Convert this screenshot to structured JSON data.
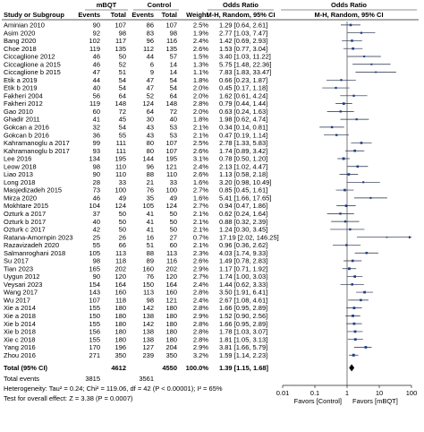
{
  "chart_data": {
    "type": "forest",
    "headers": {
      "group_exp": "mBQT",
      "group_ctrl": "Control",
      "or_group": "Odds Ratio",
      "or_plot_group": "Odds Ratio",
      "study": "Study or Subgroup",
      "events_exp": "Events",
      "total_exp": "Total",
      "events_ctrl": "Events",
      "total_ctrl": "Total",
      "weight": "Weight",
      "method": "M-H, Random, 95% CI",
      "method_plot": "M-H, Random, 95% CI"
    },
    "studies": [
      {
        "name": "Aminian 2010",
        "e1": "90",
        "n1": "107",
        "e2": "86",
        "n2": "107",
        "w": "2.5%",
        "or": 1.29,
        "lo": 0.64,
        "hi": 2.61,
        "ci": "1.29 [0.64, 2.61]"
      },
      {
        "name": "Asim 2020",
        "e1": "92",
        "n1": "98",
        "e2": "83",
        "n2": "98",
        "w": "1.9%",
        "or": 2.77,
        "lo": 1.03,
        "hi": 7.47,
        "ci": "2.77 [1.03, 7.47]"
      },
      {
        "name": "Bang 2020",
        "e1": "102",
        "n1": "117",
        "e2": "96",
        "n2": "116",
        "w": "2.4%",
        "or": 1.42,
        "lo": 0.69,
        "hi": 2.93,
        "ci": "1.42 [0.69, 2.93]"
      },
      {
        "name": "Choe 2018",
        "e1": "119",
        "n1": "135",
        "e2": "112",
        "n2": "135",
        "w": "2.6%",
        "or": 1.53,
        "lo": 0.77,
        "hi": 3.04,
        "ci": "1.53 [0.77, 3.04]"
      },
      {
        "name": "Ciccaglione 2012",
        "e1": "46",
        "n1": "50",
        "e2": "44",
        "n2": "57",
        "w": "1.5%",
        "or": 3.4,
        "lo": 1.03,
        "hi": 11.22,
        "ci": "3.40 [1.03, 11.22]"
      },
      {
        "name": "Ciccaglione a 2015",
        "e1": "46",
        "n1": "52",
        "e2": "6",
        "n2": "14",
        "w": "1.3%",
        "or": 5.75,
        "lo": 1.48,
        "hi": 22.36,
        "ci": "5.75 [1.48, 22.36]"
      },
      {
        "name": "Ciccaglione b 2015",
        "e1": "47",
        "n1": "51",
        "e2": "9",
        "n2": "14",
        "w": "1.1%",
        "or": 7.83,
        "lo": 1.83,
        "hi": 33.47,
        "ci": "7.83 [1.83, 33.47]"
      },
      {
        "name": "Etik a 2019",
        "e1": "44",
        "n1": "54",
        "e2": "47",
        "n2": "54",
        "w": "1.8%",
        "or": 0.66,
        "lo": 0.23,
        "hi": 1.87,
        "ci": "0.66 [0.23, 1.87]"
      },
      {
        "name": "Etik b 2019",
        "e1": "40",
        "n1": "54",
        "e2": "47",
        "n2": "54",
        "w": "2.0%",
        "or": 0.45,
        "lo": 0.17,
        "hi": 1.18,
        "ci": "0.45 [0.17, 1.18]"
      },
      {
        "name": "Fakheri 2004",
        "e1": "56",
        "n1": "64",
        "e2": "52",
        "n2": "64",
        "w": "2.0%",
        "or": 1.62,
        "lo": 0.61,
        "hi": 4.24,
        "ci": "1.62 [0.61, 4.24]"
      },
      {
        "name": "Fakheri 2012",
        "e1": "119",
        "n1": "148",
        "e2": "124",
        "n2": "148",
        "w": "2.8%",
        "or": 0.79,
        "lo": 0.44,
        "hi": 1.44,
        "ci": "0.79 [0.44, 1.44]"
      },
      {
        "name": "Gao 2010",
        "e1": "60",
        "n1": "72",
        "e2": "64",
        "n2": "72",
        "w": "2.0%",
        "or": 0.63,
        "lo": 0.24,
        "hi": 1.63,
        "ci": "0.63 [0.24, 1.63]"
      },
      {
        "name": "Ghadir 2011",
        "e1": "41",
        "n1": "45",
        "e2": "30",
        "n2": "40",
        "w": "1.8%",
        "or": 1.98,
        "lo": 0.62,
        "hi": 4.74,
        "ci": "1.98 [0.62, 4.74]"
      },
      {
        "name": "Gokcan a 2016",
        "e1": "32",
        "n1": "54",
        "e2": "43",
        "n2": "53",
        "w": "2.1%",
        "or": 0.34,
        "lo": 0.14,
        "hi": 0.81,
        "ci": "0.34 [0.14, 0.81]"
      },
      {
        "name": "Gokcan b 2016",
        "e1": "36",
        "n1": "55",
        "e2": "43",
        "n2": "53",
        "w": "2.1%",
        "or": 0.47,
        "lo": 0.19,
        "hi": 1.14,
        "ci": "0.47 [0.19, 1.14]"
      },
      {
        "name": "Kahramanoglu a 2017",
        "e1": "99",
        "n1": "111",
        "e2": "80",
        "n2": "107",
        "w": "2.5%",
        "or": 2.78,
        "lo": 1.33,
        "hi": 5.83,
        "ci": "2.78 [1.33, 5.83]"
      },
      {
        "name": "Kahramanoglu b 2017",
        "e1": "93",
        "n1": "111",
        "e2": "80",
        "n2": "107",
        "w": "2.6%",
        "or": 1.74,
        "lo": 0.89,
        "hi": 3.42,
        "ci": "1.74 [0.89, 3.42]"
      },
      {
        "name": "Lee 2016",
        "e1": "134",
        "n1": "195",
        "e2": "144",
        "n2": "195",
        "w": "3.1%",
        "or": 0.78,
        "lo": 0.5,
        "hi": 1.2,
        "ci": "0.78 [0.50, 1.20]"
      },
      {
        "name": "Leow 2018",
        "e1": "98",
        "n1": "110",
        "e2": "96",
        "n2": "121",
        "w": "2.4%",
        "or": 2.13,
        "lo": 1.02,
        "hi": 4.47,
        "ci": "2.13 [1.02, 4.47]"
      },
      {
        "name": "Liao 2013",
        "e1": "90",
        "n1": "110",
        "e2": "88",
        "n2": "110",
        "w": "2.6%",
        "or": 1.13,
        "lo": 0.58,
        "hi": 2.18,
        "ci": "1.13 [0.58, 2.18]"
      },
      {
        "name": "Long 2018",
        "e1": "28",
        "n1": "33",
        "e2": "21",
        "n2": "33",
        "w": "1.6%",
        "or": 3.2,
        "lo": 0.98,
        "hi": 10.49,
        "ci": "3.20 [0.98, 10.49]"
      },
      {
        "name": "Masjedizadeh 2015",
        "e1": "73",
        "n1": "100",
        "e2": "76",
        "n2": "100",
        "w": "2.7%",
        "or": 0.85,
        "lo": 0.45,
        "hi": 1.61,
        "ci": "0.85 [0.45, 1.61]"
      },
      {
        "name": "Mirza 2020",
        "e1": "46",
        "n1": "49",
        "e2": "35",
        "n2": "49",
        "w": "1.6%",
        "or": 5.41,
        "lo": 1.66,
        "hi": 17.65,
        "ci": "5.41 [1.66, 17.65]"
      },
      {
        "name": "Mokhtare 2015",
        "e1": "104",
        "n1": "124",
        "e2": "105",
        "n2": "124",
        "w": "2.7%",
        "or": 0.94,
        "lo": 0.47,
        "hi": 1.86,
        "ci": "0.94 [0.47, 1.86]"
      },
      {
        "name": "Ozturk a 2017",
        "e1": "37",
        "n1": "50",
        "e2": "41",
        "n2": "50",
        "w": "2.1%",
        "or": 0.62,
        "lo": 0.24,
        "hi": 1.64,
        "ci": "0.62 [0.24, 1.64]"
      },
      {
        "name": "Ozturk b 2017",
        "e1": "40",
        "n1": "50",
        "e2": "41",
        "n2": "50",
        "w": "2.1%",
        "or": 0.88,
        "lo": 0.32,
        "hi": 2.39,
        "ci": "0.88 [0.32, 2.39]"
      },
      {
        "name": "Ozturk c 2017",
        "e1": "42",
        "n1": "50",
        "e2": "41",
        "n2": "50",
        "w": "2.1%",
        "or": 1.24,
        "lo": 0.3,
        "hi": 3.45,
        "ci": "1.24 [0.30, 3.45]"
      },
      {
        "name": "Ratana-Amornpin 2023",
        "e1": "25",
        "n1": "26",
        "e2": "16",
        "n2": "27",
        "w": "0.7%",
        "or": 17.19,
        "lo": 2.02,
        "hi": 146.25,
        "ci": "17.19 [2.02, 146.25]"
      },
      {
        "name": "Razavizadeh 2020",
        "e1": "55",
        "n1": "66",
        "e2": "51",
        "n2": "60",
        "w": "2.1%",
        "or": 0.96,
        "lo": 0.36,
        "hi": 2.62,
        "ci": "0.96 [0.36, 2.62]"
      },
      {
        "name": "Salmanroghani 2018",
        "e1": "105",
        "n1": "113",
        "e2": "88",
        "n2": "113",
        "w": "2.3%",
        "or": 4.03,
        "lo": 1.74,
        "hi": 9.33,
        "ci": "4.03 [1.74, 9.33]"
      },
      {
        "name": "Su 2017",
        "e1": "98",
        "n1": "118",
        "e2": "89",
        "n2": "116",
        "w": "2.6%",
        "or": 1.49,
        "lo": 0.78,
        "hi": 2.83,
        "ci": "1.49 [0.78, 2.83]"
      },
      {
        "name": "Tian 2023",
        "e1": "165",
        "n1": "202",
        "e2": "160",
        "n2": "202",
        "w": "2.9%",
        "or": 1.17,
        "lo": 0.71,
        "hi": 1.92,
        "ci": "1.17 [0.71, 1.92]"
      },
      {
        "name": "Uygun 2012",
        "e1": "90",
        "n1": "120",
        "e2": "76",
        "n2": "120",
        "w": "2.7%",
        "or": 1.74,
        "lo": 1.0,
        "hi": 3.03,
        "ci": "1.74 [1.00, 3.03]"
      },
      {
        "name": "Veysari 2023",
        "e1": "154",
        "n1": "164",
        "e2": "150",
        "n2": "164",
        "w": "2.4%",
        "or": 1.44,
        "lo": 0.62,
        "hi": 3.33,
        "ci": "1.44 [0.62, 3.33]"
      },
      {
        "name": "Wang 2017",
        "e1": "143",
        "n1": "160",
        "e2": "113",
        "n2": "160",
        "w": "2.8%",
        "or": 3.5,
        "lo": 1.91,
        "hi": 6.41,
        "ci": "3.50 [1.91, 6.41]"
      },
      {
        "name": "Wu 2017",
        "e1": "107",
        "n1": "118",
        "e2": "98",
        "n2": "121",
        "w": "2.4%",
        "or": 2.67,
        "lo": 1.08,
        "hi": 4.61,
        "ci": "2.67 [1.08, 4.61]"
      },
      {
        "name": "Xie a 2014",
        "e1": "155",
        "n1": "180",
        "e2": "142",
        "n2": "180",
        "w": "2.8%",
        "or": 1.66,
        "lo": 0.95,
        "hi": 2.89,
        "ci": "1.66 [0.95, 2.89]"
      },
      {
        "name": "Xie a 2018",
        "e1": "150",
        "n1": "180",
        "e2": "138",
        "n2": "180",
        "w": "2.9%",
        "or": 1.52,
        "lo": 0.9,
        "hi": 2.56,
        "ci": "1.52 [0.90, 2.56]"
      },
      {
        "name": "Xie b 2014",
        "e1": "155",
        "n1": "180",
        "e2": "142",
        "n2": "180",
        "w": "2.8%",
        "or": 1.66,
        "lo": 0.95,
        "hi": 2.89,
        "ci": "1.66 [0.95, 2.89]"
      },
      {
        "name": "Xie b 2018",
        "e1": "156",
        "n1": "180",
        "e2": "138",
        "n2": "180",
        "w": "2.8%",
        "or": 1.78,
        "lo": 1.03,
        "hi": 3.07,
        "ci": "1.78 [1.03, 3.07]"
      },
      {
        "name": "Xie c 2018",
        "e1": "155",
        "n1": "180",
        "e2": "138",
        "n2": "180",
        "w": "2.8%",
        "or": 1.81,
        "lo": 1.05,
        "hi": 3.13,
        "ci": "1.81 [1.05, 3.13]"
      },
      {
        "name": "Yang 2016",
        "e1": "170",
        "n1": "196",
        "e2": "127",
        "n2": "204",
        "w": "2.9%",
        "or": 3.81,
        "lo": 1.66,
        "hi": 5.79,
        "ci": "3.81 [1.66, 5.79]"
      },
      {
        "name": "Zhou 2016",
        "e1": "271",
        "n1": "350",
        "e2": "239",
        "n2": "350",
        "w": "3.2%",
        "or": 1.59,
        "lo": 1.14,
        "hi": 2.23,
        "ci": "1.59 [1.14, 2.23]"
      }
    ],
    "total": {
      "name": "Total (95% CI)",
      "n1": "4612",
      "n2": "4550",
      "w": "100.0%",
      "or": 1.39,
      "lo": 1.15,
      "hi": 1.68,
      "ci": "1.39 [1.15, 1.68]"
    },
    "total_events": {
      "label": "Total events",
      "e1": "3815",
      "e2": "3561"
    },
    "heterogeneity": "Heterogeneity: Tau² = 0.24; Chi² = 119.06, df = 42 (P < 0.00001); I² = 65%",
    "overall_effect": "Test for overall effect: Z = 3.38 (P = 0.0007)",
    "axis": {
      "scale": "log",
      "ticks": [
        0.01,
        0.1,
        1,
        10,
        100
      ],
      "tick_labels": [
        "0.01",
        "0.1",
        "1",
        "10",
        "100"
      ],
      "favors_left": "Favors [Control]",
      "favors_right": "Favors [mBQT]"
    },
    "colors": {
      "ci_line": "#1f2a44",
      "square": "#1f3c88",
      "header_rule": "#222222",
      "diamond": "#000000"
    }
  }
}
